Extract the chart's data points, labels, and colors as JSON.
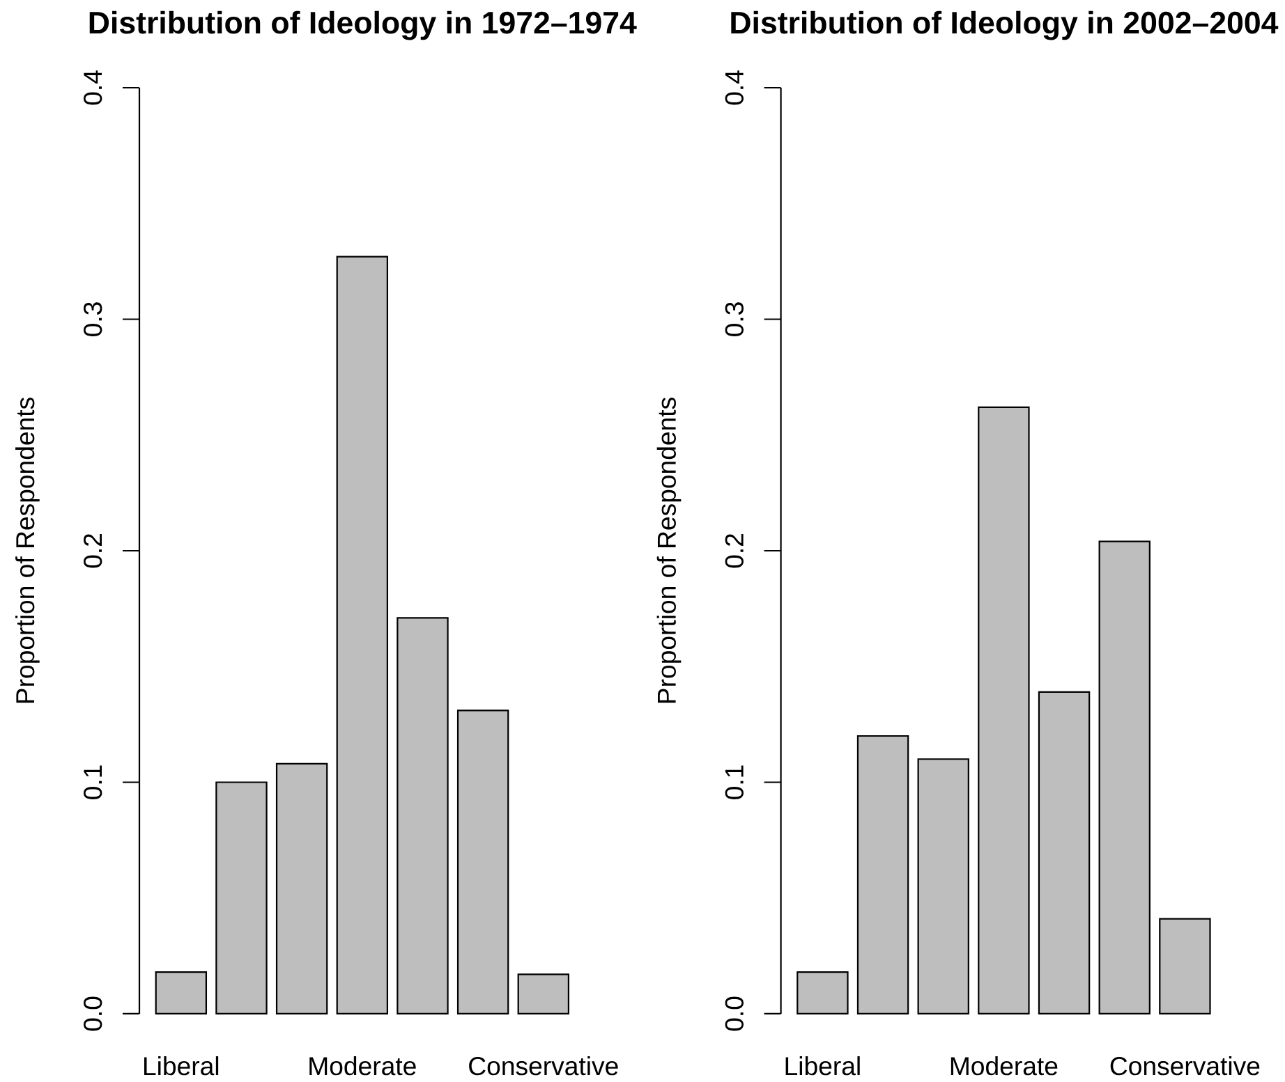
{
  "chart_data": [
    {
      "type": "bar",
      "title": "Distribution of Ideology in 1972–1974",
      "ylabel": "Proportion of Respondents",
      "categories": [
        "Liberal",
        null,
        null,
        "Moderate",
        null,
        null,
        "Conservative"
      ],
      "values": [
        0.018,
        0.1,
        0.108,
        0.327,
        0.171,
        0.131,
        0.017
      ],
      "color": "#bebebe",
      "ylim": [
        0,
        0.4
      ],
      "yticks": [
        {
          "value": 0,
          "label": "0.0"
        },
        0.1,
        0.2,
        0.3,
        0.4
      ]
    },
    {
      "type": "bar",
      "title": "Distribution of Ideology in 2002–2004",
      "ylabel": "Proportion of Respondents",
      "categories": [
        "Liberal",
        null,
        null,
        "Moderate",
        null,
        null,
        "Conservative"
      ],
      "values": [
        0.018,
        0.12,
        0.11,
        0.262,
        0.139,
        0.204,
        0.041
      ],
      "color": "#bebebe",
      "ylim": [
        0,
        0.4
      ],
      "yticks": [
        {
          "value": 0,
          "label": "0.0"
        },
        0.1,
        0.2,
        0.3,
        0.4
      ]
    }
  ]
}
